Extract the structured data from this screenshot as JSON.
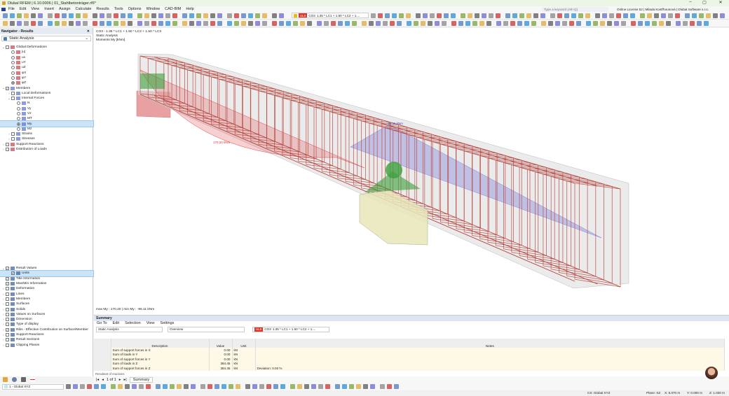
{
  "window": {
    "title": "Dlubal RFEM | 6.10.0006 | 01_Stahlbetonträger.rf6*",
    "minimize": "–",
    "maximize": "▢",
    "close": "✕"
  },
  "menu": [
    "File",
    "Edit",
    "View",
    "Insert",
    "Assign",
    "Calculate",
    "Results",
    "Tools",
    "Options",
    "Window",
    "CAD-BIM",
    "Help"
  ],
  "search": {
    "placeholder": "Type a keyword (Alt+Q)"
  },
  "license": "Online License 52 | Milada Kostřhounová | Dlubal Software s.r.o.",
  "toolbar": {
    "load_badge": "ULS",
    "load_case": "CO3",
    "load_combo": "1.35 * LC1 + 1.50 * LC2 + 1...."
  },
  "navigator": {
    "title": "Navigator - Results",
    "analysis": "Static Analysis",
    "tree": [
      {
        "label": "Global Deformations",
        "lvl": 0,
        "kind": "cb",
        "exp": "v"
      },
      {
        "label": "|u|",
        "lvl": 1,
        "kind": "rb"
      },
      {
        "label": "ux",
        "lvl": 1,
        "kind": "rb"
      },
      {
        "label": "uY",
        "lvl": 1,
        "kind": "rb"
      },
      {
        "label": "uZ",
        "lvl": 1,
        "kind": "rb"
      },
      {
        "label": "φX",
        "lvl": 1,
        "kind": "rb"
      },
      {
        "label": "φY",
        "lvl": 1,
        "kind": "rb"
      },
      {
        "label": "φZ",
        "lvl": 1,
        "kind": "rb",
        "on": true
      },
      {
        "label": "Members",
        "lvl": 0,
        "kind": "cb",
        "exp": "v",
        "checked": true
      },
      {
        "label": "Local Deformations",
        "lvl": 1,
        "kind": "cb",
        "exp": ">"
      },
      {
        "label": "Internal Forces",
        "lvl": 1,
        "kind": "cb",
        "exp": "v"
      },
      {
        "label": "N",
        "lvl": 2,
        "kind": "rb"
      },
      {
        "label": "Vy",
        "lvl": 2,
        "kind": "rb"
      },
      {
        "label": "Vz",
        "lvl": 2,
        "kind": "rb"
      },
      {
        "label": "MT",
        "lvl": 2,
        "kind": "rb"
      },
      {
        "label": "My",
        "lvl": 2,
        "kind": "rb",
        "on": true,
        "hl": true
      },
      {
        "label": "Mz",
        "lvl": 2,
        "kind": "rb"
      },
      {
        "label": "Strains",
        "lvl": 1,
        "kind": "cb",
        "exp": ">"
      },
      {
        "label": "Stresses",
        "lvl": 1,
        "kind": "cb",
        "exp": ">"
      },
      {
        "label": "Support Reactions",
        "lvl": 0,
        "kind": "cb",
        "exp": ">"
      },
      {
        "label": "Distribution of Loads",
        "lvl": 0,
        "kind": "cb",
        "exp": ">"
      }
    ],
    "tree2": [
      {
        "label": "Result Values",
        "lvl": 0,
        "kind": "cb",
        "exp": "v",
        "checked": true
      },
      {
        "label": "Units",
        "lvl": 1,
        "kind": "cb",
        "checked": true,
        "hl": true
      },
      {
        "label": "Title Information",
        "lvl": 0,
        "kind": "cb",
        "checked": true
      },
      {
        "label": "Max/Min Information",
        "lvl": 0,
        "kind": "cb",
        "checked": true
      },
      {
        "label": "Deformation",
        "lvl": 0,
        "kind": "cb",
        "exp": ">"
      },
      {
        "label": "Lines",
        "lvl": 0,
        "kind": "cb",
        "exp": ">"
      },
      {
        "label": "Members",
        "lvl": 0,
        "kind": "cb",
        "exp": ">"
      },
      {
        "label": "Surfaces",
        "lvl": 0,
        "kind": "cb",
        "exp": ">"
      },
      {
        "label": "Solids",
        "lvl": 0,
        "kind": "cb",
        "exp": ">"
      },
      {
        "label": "Values on Surfaces",
        "lvl": 0,
        "kind": "cb",
        "exp": ">"
      },
      {
        "label": "Dimension",
        "lvl": 0,
        "kind": "cb",
        "exp": ">"
      },
      {
        "label": "Type of display",
        "lvl": 0,
        "kind": "cb",
        "exp": ">"
      },
      {
        "label": "Ribs - Effective Contribution on Surface/Member",
        "lvl": 0,
        "kind": "cb",
        "exp": ">",
        "checked": true
      },
      {
        "label": "Support Reactions",
        "lvl": 0,
        "kind": "cb",
        "exp": ">"
      },
      {
        "label": "Result Sections",
        "lvl": 0,
        "kind": "cb",
        "exp": ">"
      },
      {
        "label": "Clipping Planes",
        "lvl": 0,
        "kind": "cb",
        "exp": ">"
      }
    ]
  },
  "viewport": {
    "info_line1": "CO3 - 1.35 * LC1 + 1.50 * LC2 + 1.50 * LC3",
    "info_line2": "Static Analysis",
    "info_line3": "Moments My [kNm]",
    "label_max": "170.20 kNm",
    "label_min": "-96.11 kNm",
    "maxmin": "max My : 170.20 | min My : -96.11 kNm",
    "colors": {
      "positive": "#e0484a",
      "negative": "#6f6fd8",
      "rebar": "#b5413a"
    }
  },
  "summary": {
    "title": "Summary",
    "menu": [
      "Go To",
      "Edit",
      "Selection",
      "View",
      "Settings"
    ],
    "analysis": "Static Analysis",
    "view": "Overview",
    "columns": [
      "Description",
      "Value",
      "Unit",
      "Notes"
    ],
    "rows": [
      [
        "Sum of support forces in X",
        "0.00",
        "kN",
        ""
      ],
      [
        "Sum of loads in Y",
        "0.00",
        "kN",
        ""
      ],
      [
        "Sum of support forces in Y",
        "0.00",
        "kN",
        ""
      ],
      [
        "Sum of loads in Z",
        "384.45",
        "kN",
        ""
      ],
      [
        "Sum of support forces in Z",
        "384.45",
        "kN",
        "Deviation: 0.00 %"
      ]
    ],
    "pager": "1 of 1",
    "tab": "Summary",
    "next_section": "Resultant of reactions"
  },
  "bottom": {
    "cs_select": "1 - Global XYZ"
  },
  "status": {
    "cs": "CS: Global XYZ",
    "plane": "Plane: XZ",
    "x": "X: 5.070 m",
    "y": "Y: 0.000 m",
    "z": "Z: 1.020 m"
  }
}
